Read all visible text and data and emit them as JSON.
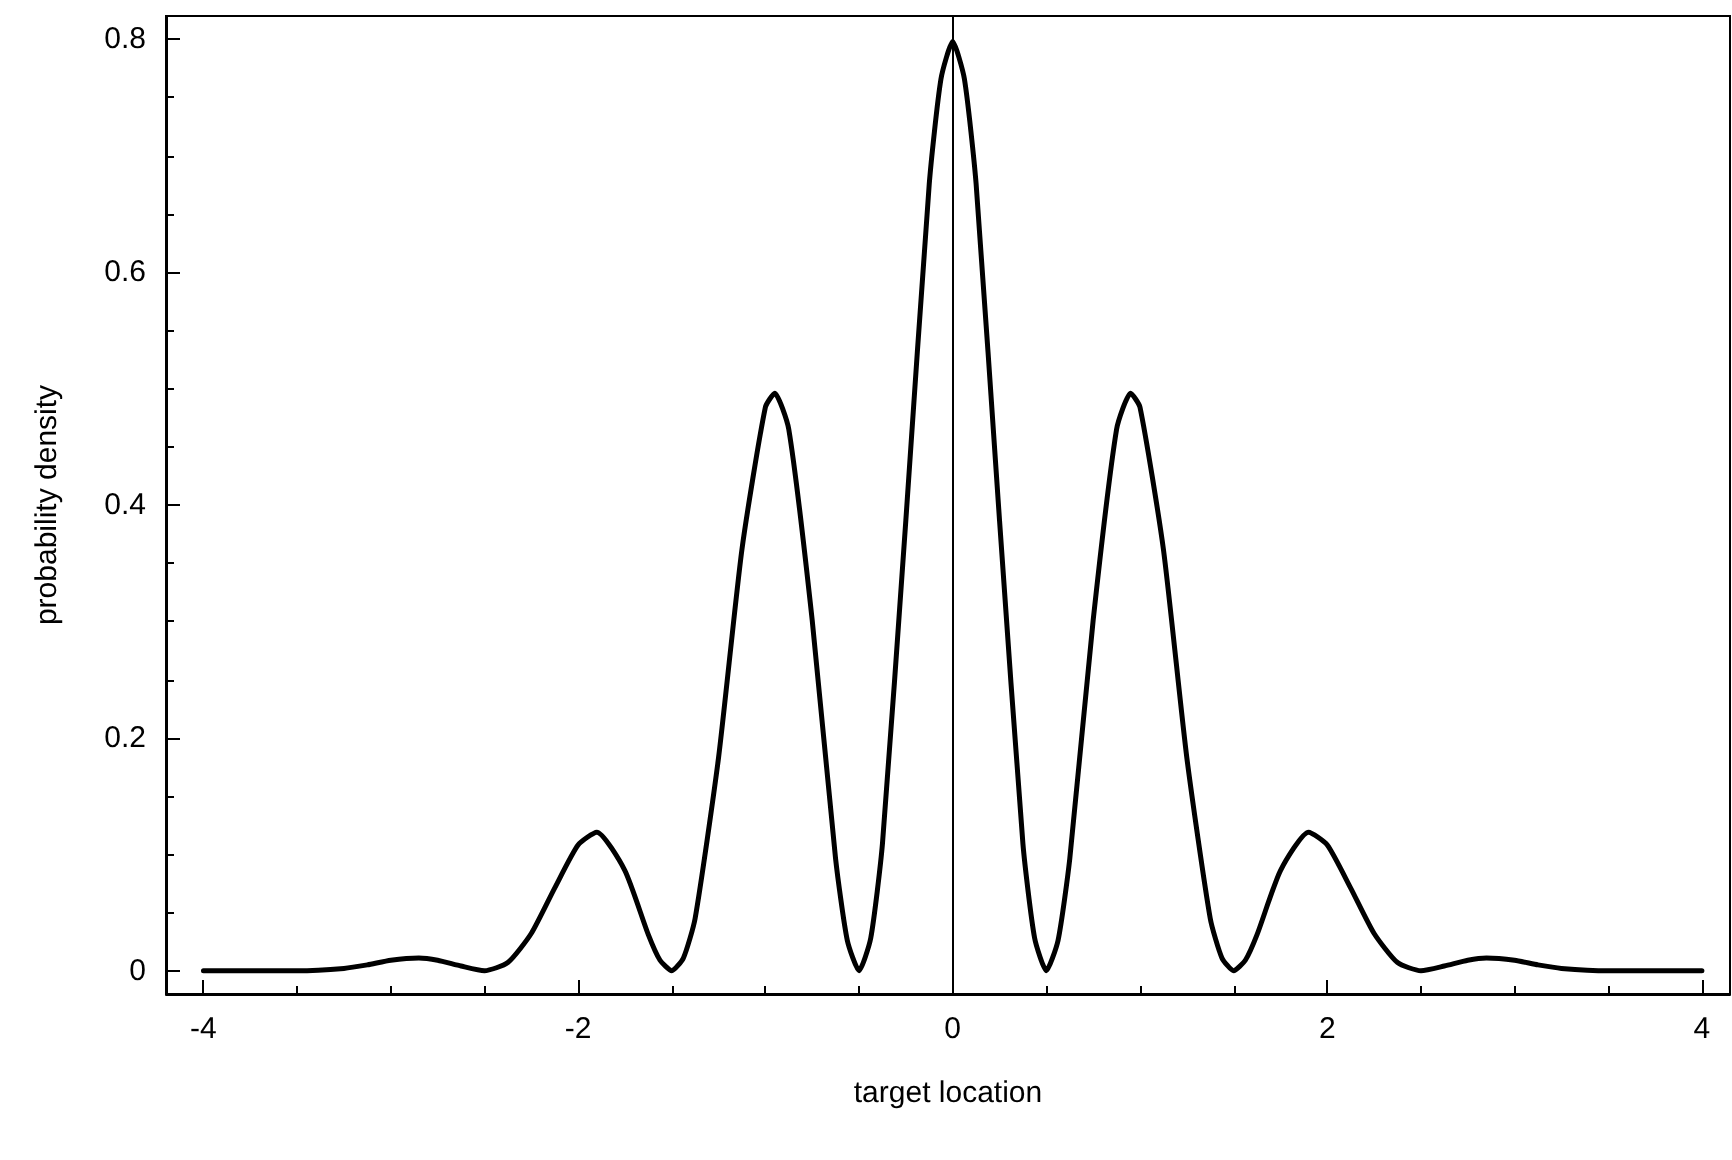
{
  "chart_data": {
    "type": "line",
    "xlabel": "target location",
    "ylabel": "probability density",
    "x": [
      -4,
      -3.5,
      -3.25,
      -3.125,
      -3,
      -2.85,
      -2.75,
      -2.625,
      -2.5,
      -2.375,
      -2.25,
      -2.125,
      -2,
      -1.9,
      -1.75,
      -1.625,
      -1.5625,
      -1.5,
      -1.4375,
      -1.375,
      -1.25,
      -1.125,
      -1,
      -0.95,
      -0.875,
      -0.75,
      -0.625,
      -0.5625,
      -0.5,
      -0.4375,
      -0.375,
      -0.25,
      -0.125,
      -0.0625,
      0,
      0.0625,
      0.125,
      0.25,
      0.375,
      0.4375,
      0.5,
      0.5625,
      0.625,
      0.75,
      0.875,
      0.95,
      1,
      1.125,
      1.25,
      1.375,
      1.4375,
      1.5,
      1.5625,
      1.625,
      1.75,
      1.9,
      2,
      2.125,
      2.25,
      2.375,
      2.5,
      2.625,
      2.75,
      2.85,
      3,
      3.125,
      3.25,
      3.5,
      4
    ],
    "series": [
      {
        "color": "#000000",
        "values": [
          0,
          0,
          0.002,
          0.005,
          0.009,
          0.011,
          0.009,
          0.004,
          0,
          0.007,
          0.032,
          0.071,
          0.108,
          0.119,
          0.086,
          0.031,
          0.009,
          0,
          0.011,
          0.045,
          0.183,
          0.362,
          0.484,
          0.496,
          0.465,
          0.301,
          0.096,
          0.026,
          0,
          0.028,
          0.109,
          0.387,
          0.676,
          0.766,
          0.798,
          0.766,
          0.676,
          0.387,
          0.109,
          0.028,
          0,
          0.026,
          0.096,
          0.301,
          0.465,
          0.496,
          0.484,
          0.362,
          0.183,
          0.045,
          0.011,
          0,
          0.009,
          0.031,
          0.086,
          0.119,
          0.108,
          0.071,
          0.032,
          0.007,
          0,
          0.004,
          0.009,
          0.011,
          0.009,
          0.005,
          0.002,
          0,
          0
        ]
      }
    ],
    "xlim": [
      -4.2,
      4.15
    ],
    "xticks": [
      -4,
      -2,
      0,
      2,
      4
    ],
    "ylim": [
      -0.02,
      0.82
    ],
    "yticks": [
      0,
      0.2,
      0.4,
      0.6,
      0.8
    ],
    "ref_lines": [
      {
        "axis": "x",
        "value": 0,
        "color": "#000000"
      }
    ],
    "marker": "none",
    "line_style": "solid"
  }
}
